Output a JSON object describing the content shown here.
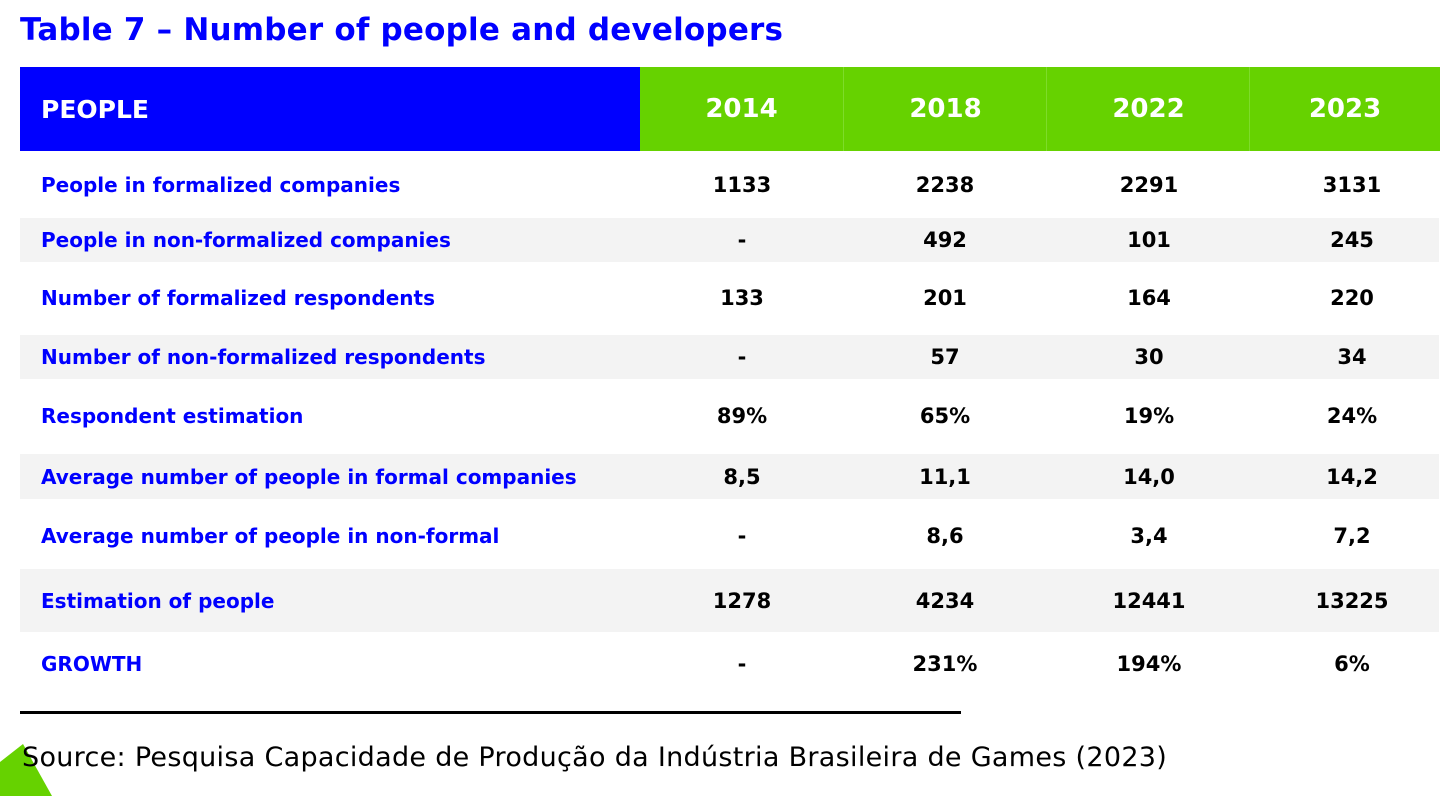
{
  "title": "Table 7 – Number of people and developers",
  "colors": {
    "blue": "#0000ff",
    "green": "#66d200",
    "band": "#f3f3f3"
  },
  "header": {
    "people": "PEOPLE",
    "years": [
      "2014",
      "2018",
      "2022",
      "2023"
    ]
  },
  "rows": [
    {
      "label": "People in formalized companies",
      "values": [
        "1133",
        "2238",
        "2291",
        "3131"
      ]
    },
    {
      "label": "People in non-formalized companies",
      "values": [
        "-",
        "492",
        "101",
        "245"
      ]
    },
    {
      "label": "Number of formalized respondents",
      "values": [
        "133",
        "201",
        "164",
        "220"
      ]
    },
    {
      "label": "Number of non-formalized respondents",
      "values": [
        "-",
        "57",
        "30",
        "34"
      ]
    },
    {
      "label": "Respondent estimation",
      "values": [
        "89%",
        "65%",
        "19%",
        "24%"
      ]
    },
    {
      "label": "Average number of people in formal companies",
      "values": [
        "8,5",
        "11,1",
        "14,0",
        "14,2"
      ]
    },
    {
      "label": "Average number of people in non-formal",
      "values": [
        "-",
        "8,6",
        "3,4",
        "7,2"
      ]
    },
    {
      "label": "Estimation of people",
      "values": [
        "1278",
        "4234",
        "12441",
        "13225"
      ]
    },
    {
      "label": "GROWTH",
      "values": [
        "-",
        "231%",
        "194%",
        "6%"
      ]
    }
  ],
  "source": "Source: Pesquisa Capacidade de Produção da Indústria Brasileira de Games (2023)"
}
